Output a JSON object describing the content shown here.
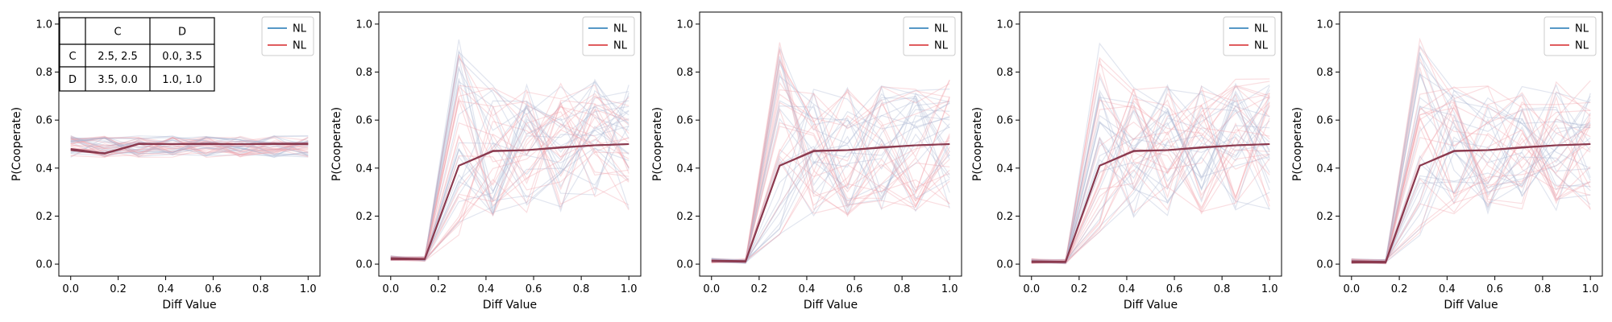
{
  "colors": {
    "nl_blue": "#1f77b4",
    "nl_red": "#d62728",
    "mean_line": "#8b3a4f",
    "faint_blue": "#aab4d0",
    "faint_red": "#f0a0a8"
  },
  "payoff_table": {
    "col_headers": [
      "C",
      "D"
    ],
    "rows": [
      {
        "label": "C",
        "cells": [
          "2.5, 2.5",
          "0.0, 3.5"
        ]
      },
      {
        "label": "D",
        "cells": [
          "3.5, 0.0",
          "1.0, 1.0"
        ]
      }
    ]
  },
  "chart_data": [
    {
      "type": "line",
      "xlabel": "Diff Value",
      "ylabel": "P(Cooperate)",
      "xlim": [
        -0.05,
        1.05
      ],
      "ylim": [
        -0.05,
        1.05
      ],
      "x_ticks": [
        "0.0",
        "0.2",
        "0.4",
        "0.6",
        "0.8",
        "1.0"
      ],
      "y_ticks": [
        "0.0",
        "0.2",
        "0.4",
        "0.6",
        "0.8",
        "1.0"
      ],
      "legend": {
        "position": "upper-right",
        "entries": [
          "NL",
          "NL"
        ]
      },
      "x": [
        0,
        0.143,
        0.286,
        0.429,
        0.571,
        0.714,
        0.857,
        1.0
      ],
      "series": [
        {
          "values": [
            0.475,
            0.46,
            0.5,
            0.5,
            0.5,
            0.5,
            0.5,
            0.5
          ]
        },
        {
          "values": [
            0.48,
            0.462,
            0.502,
            0.5,
            0.502,
            0.5,
            0.502,
            0.502
          ]
        }
      ]
    },
    {
      "type": "line",
      "xlabel": "Diff Value",
      "ylabel": "P(Cooperate)",
      "xlim": [
        -0.05,
        1.05
      ],
      "ylim": [
        -0.05,
        1.05
      ],
      "x_ticks": [
        "0.0",
        "0.2",
        "0.4",
        "0.6",
        "0.8",
        "1.0"
      ],
      "y_ticks": [
        "0.0",
        "0.2",
        "0.4",
        "0.6",
        "0.8",
        "1.0"
      ],
      "legend": {
        "position": "upper-right",
        "entries": [
          "NL",
          "NL"
        ]
      },
      "x": [
        0,
        0.143,
        0.286,
        0.429,
        0.571,
        0.714,
        0.857,
        1.0
      ],
      "series": [
        {
          "values": [
            0.025,
            0.022,
            0.41,
            0.47,
            0.475,
            0.485,
            0.495,
            0.5
          ]
        },
        {
          "values": [
            0.02,
            0.02,
            0.41,
            0.472,
            0.475,
            0.487,
            0.495,
            0.5
          ]
        }
      ]
    },
    {
      "type": "line",
      "xlabel": "Diff Value",
      "ylabel": "P(Cooperate)",
      "xlim": [
        -0.05,
        1.05
      ],
      "ylim": [
        -0.05,
        1.05
      ],
      "x_ticks": [
        "0.0",
        "0.2",
        "0.4",
        "0.6",
        "0.8",
        "1.0"
      ],
      "y_ticks": [
        "0.0",
        "0.2",
        "0.4",
        "0.6",
        "0.8",
        "1.0"
      ],
      "legend": {
        "position": "upper-right",
        "entries": [
          "NL",
          "NL"
        ]
      },
      "x": [
        0,
        0.143,
        0.286,
        0.429,
        0.571,
        0.714,
        0.857,
        1.0
      ],
      "series": [
        {
          "values": [
            0.015,
            0.013,
            0.41,
            0.47,
            0.475,
            0.485,
            0.495,
            0.5
          ]
        },
        {
          "values": [
            0.012,
            0.01,
            0.41,
            0.472,
            0.475,
            0.487,
            0.495,
            0.5
          ]
        }
      ]
    },
    {
      "type": "line",
      "xlabel": "Diff Value",
      "ylabel": "P(Cooperate)",
      "xlim": [
        -0.05,
        1.05
      ],
      "ylim": [
        -0.05,
        1.05
      ],
      "x_ticks": [
        "0.0",
        "0.2",
        "0.4",
        "0.6",
        "0.8",
        "1.0"
      ],
      "y_ticks": [
        "0.0",
        "0.2",
        "0.4",
        "0.6",
        "0.8",
        "1.0"
      ],
      "legend": {
        "position": "upper-right",
        "entries": [
          "NL",
          "NL"
        ]
      },
      "x": [
        0,
        0.143,
        0.286,
        0.429,
        0.571,
        0.714,
        0.857,
        1.0
      ],
      "series": [
        {
          "values": [
            0.012,
            0.01,
            0.41,
            0.47,
            0.475,
            0.485,
            0.495,
            0.5
          ]
        },
        {
          "values": [
            0.008,
            0.008,
            0.41,
            0.472,
            0.475,
            0.487,
            0.495,
            0.5
          ]
        }
      ]
    },
    {
      "type": "line",
      "xlabel": "Diff Value",
      "ylabel": "P(Cooperate)",
      "xlim": [
        -0.05,
        1.05
      ],
      "ylim": [
        -0.05,
        1.05
      ],
      "x_ticks": [
        "0.0",
        "0.2",
        "0.4",
        "0.6",
        "0.8",
        "1.0"
      ],
      "y_ticks": [
        "0.0",
        "0.2",
        "0.4",
        "0.6",
        "0.8",
        "1.0"
      ],
      "legend": {
        "position": "upper-right",
        "entries": [
          "NL",
          "NL"
        ]
      },
      "x": [
        0,
        0.143,
        0.286,
        0.429,
        0.571,
        0.714,
        0.857,
        1.0
      ],
      "series": [
        {
          "values": [
            0.012,
            0.01,
            0.41,
            0.47,
            0.475,
            0.485,
            0.495,
            0.5
          ]
        },
        {
          "values": [
            0.006,
            0.006,
            0.41,
            0.472,
            0.475,
            0.487,
            0.495,
            0.5
          ]
        }
      ]
    }
  ]
}
